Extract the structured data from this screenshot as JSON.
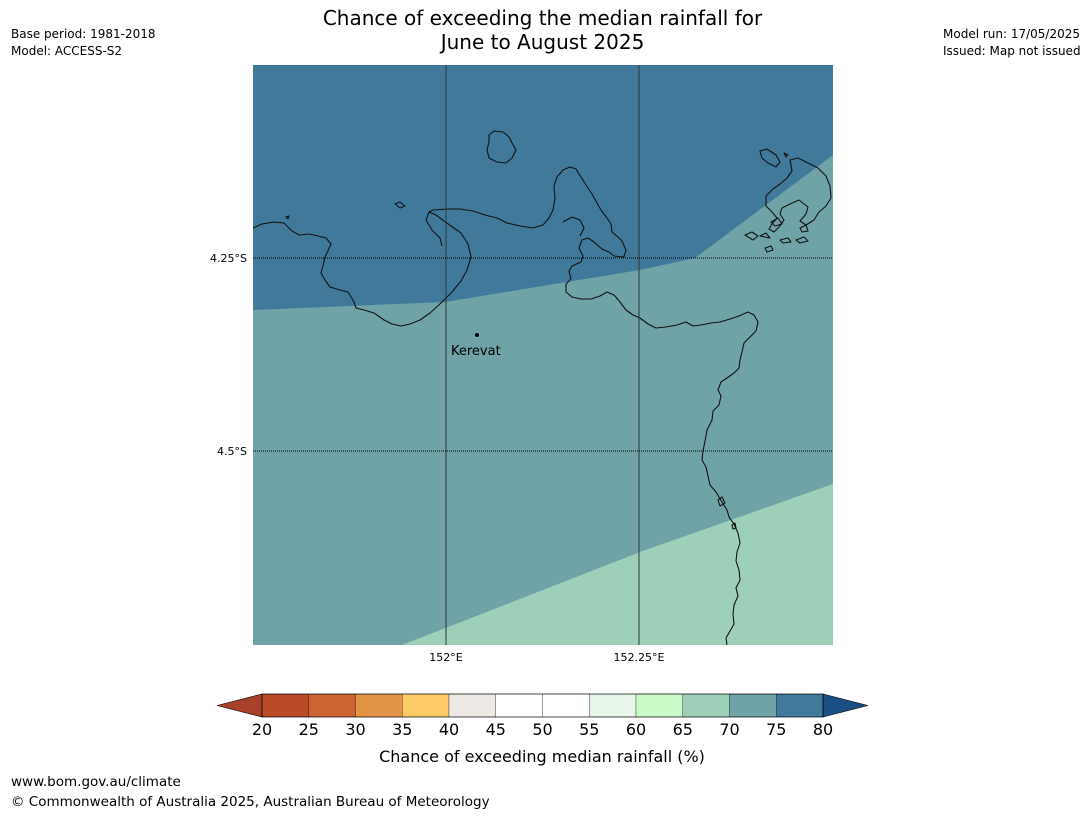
{
  "header": {
    "title_line1": "Chance of exceeding the median rainfall for",
    "title_line2": "June to August 2025",
    "base_period": "Base period: 1981-2018",
    "model": "Model: ACCESS-S2",
    "model_run": "Model run: 17/05/2025",
    "issued": "Issued: Map not issued"
  },
  "map": {
    "place_label": "Kerevat",
    "lat_labels": [
      "4.25°S",
      "4.5°S"
    ],
    "lon_labels": [
      "152°E",
      "152.25°E"
    ],
    "zone_colors": {
      "70_80": "#41799a",
      "65_70": "#6fa3a7",
      "60_65": "#9ecfb9"
    }
  },
  "colorbar": {
    "label": "Chance of exceeding median rainfall (%)",
    "ticks": [
      "20",
      "25",
      "30",
      "35",
      "40",
      "45",
      "50",
      "55",
      "60",
      "65",
      "70",
      "75",
      "80"
    ],
    "colors": [
      "#a9412a",
      "#b84a27",
      "#cd6332",
      "#e39446",
      "#fecb67",
      "#ede9e5",
      "#ffffff",
      "#ffffff",
      "#e9f7eb",
      "#c8fac8",
      "#9ecfb9",
      "#6fa3a7",
      "#41799a",
      "#1a4f86"
    ]
  },
  "footer": {
    "url": "www.bom.gov.au/climate",
    "copyright": "© Commonwealth of Australia 2025, Australian Bureau of Meteorology"
  }
}
